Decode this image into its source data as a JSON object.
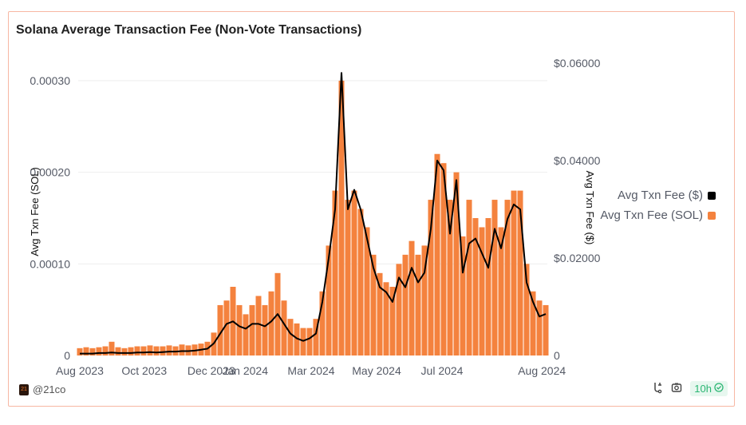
{
  "chart_data": {
    "type": "bar+line",
    "title": "Solana Average Transaction Fee (Non-Vote Transactions)",
    "ylabel_left": "Avg Txn Fee (SOL)",
    "ylabel_right": "Avg Txn Fee ($)",
    "ylim_left": [
      0,
      0.00033
    ],
    "ylim_right": [
      0,
      0.066
    ],
    "left_ticks": [
      {
        "v": 0,
        "label": "0"
      },
      {
        "v": 0.0001,
        "label": "0.00010"
      },
      {
        "v": 0.0002,
        "label": "0.00020"
      },
      {
        "v": 0.0003,
        "label": "0.00030"
      }
    ],
    "right_ticks": [
      {
        "v": 0,
        "label": "0"
      },
      {
        "v": 0.02,
        "label": "$0.02000"
      },
      {
        "v": 0.04,
        "label": "$0.04000"
      },
      {
        "v": 0.06,
        "label": "$0.06000"
      }
    ],
    "x_ticks": [
      {
        "i": 0,
        "label": "Aug 2023"
      },
      {
        "i": 10.1,
        "label": "Oct 2023"
      },
      {
        "i": 20.6,
        "label": "Dec 2023"
      },
      {
        "i": 25.9,
        "label": "Jan 2024"
      },
      {
        "i": 36.25,
        "label": "Mar 2024"
      },
      {
        "i": 46.5,
        "label": "May 2024"
      },
      {
        "i": 56.75,
        "label": "Jul 2024"
      },
      {
        "i": 72.4,
        "label": "Aug 2024"
      }
    ],
    "series": [
      {
        "name": "Avg Txn Fee (SOL)",
        "type": "bar",
        "axis": "left",
        "color": "#f4823e",
        "values": [
          8e-06,
          9e-06,
          8e-06,
          9e-06,
          1e-05,
          1.5e-05,
          9e-06,
          8e-06,
          9e-06,
          1e-05,
          1e-05,
          1.1e-05,
          1e-05,
          1e-05,
          1.1e-05,
          1e-05,
          1.2e-05,
          1.1e-05,
          1.2e-05,
          1.3e-05,
          1.5e-05,
          2.5e-05,
          5.5e-05,
          6e-05,
          7.5e-05,
          5.5e-05,
          4.5e-05,
          5.5e-05,
          6.5e-05,
          5.5e-05,
          7e-05,
          9e-05,
          6e-05,
          4e-05,
          3.5e-05,
          3e-05,
          3e-05,
          4e-05,
          7e-05,
          0.00012,
          0.00018,
          0.0003,
          0.00017,
          0.00018,
          0.00016,
          0.00014,
          0.00011,
          9e-05,
          8e-05,
          7.5e-05,
          0.0001,
          0.00011,
          0.000125,
          0.00011,
          0.00012,
          0.00017,
          0.00022,
          0.00021,
          0.00017,
          0.0002,
          0.00013,
          0.00017,
          0.00015,
          0.00014,
          0.00015,
          0.00017,
          0.00014,
          0.00017,
          0.00018,
          0.00018,
          0.0001,
          7e-05,
          6e-05,
          5.5e-05
        ]
      },
      {
        "name": "Avg Txn Fee ($)",
        "type": "line",
        "axis": "right",
        "color": "#000000",
        "values": [
          0.0004,
          0.0004,
          0.0004,
          0.0005,
          0.0005,
          0.0006,
          0.0005,
          0.0005,
          0.0005,
          0.0006,
          0.0006,
          0.0007,
          0.0006,
          0.0007,
          0.0008,
          0.0008,
          0.0009,
          0.0009,
          0.001,
          0.0012,
          0.0014,
          0.0025,
          0.0045,
          0.0065,
          0.007,
          0.006,
          0.0055,
          0.0065,
          0.0065,
          0.006,
          0.007,
          0.0085,
          0.0065,
          0.0045,
          0.0035,
          0.003,
          0.0035,
          0.0045,
          0.011,
          0.02,
          0.03,
          0.058,
          0.03,
          0.034,
          0.03,
          0.024,
          0.018,
          0.014,
          0.013,
          0.011,
          0.016,
          0.014,
          0.018,
          0.015,
          0.017,
          0.026,
          0.04,
          0.038,
          0.025,
          0.036,
          0.017,
          0.023,
          0.024,
          0.021,
          0.018,
          0.026,
          0.022,
          0.028,
          0.031,
          0.03,
          0.015,
          0.011,
          0.008,
          0.0085
        ]
      }
    ],
    "legend": "right",
    "grid": true
  },
  "footer": {
    "source": "@21co",
    "logo_text": "21",
    "refresh": "10h"
  }
}
